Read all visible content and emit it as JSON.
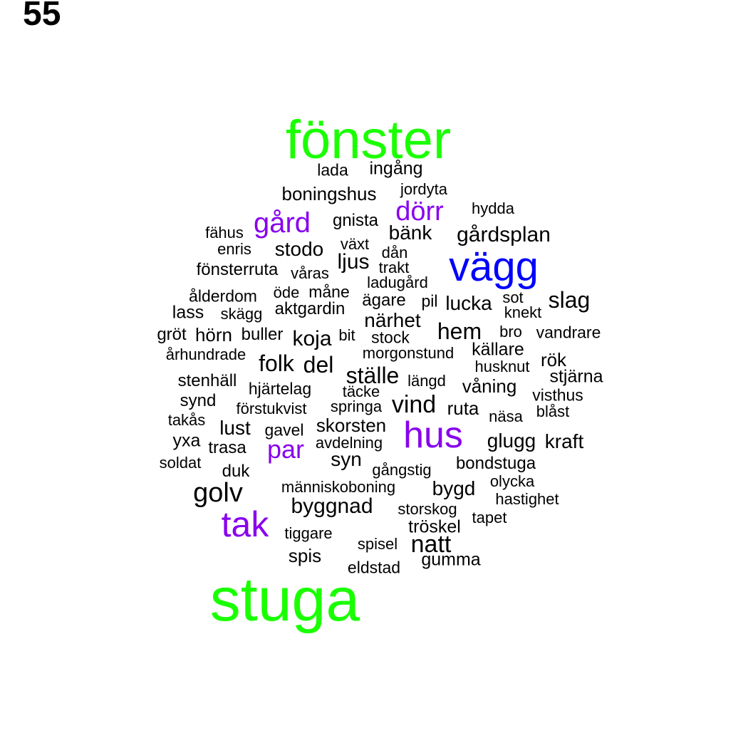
{
  "figure_label": "55",
  "colors": {
    "green": "#1aff00",
    "blue": "#0000ff",
    "purple": "#8800ee",
    "black": "#000000"
  },
  "words": [
    {
      "text": "fönster",
      "tier": "green"
    },
    {
      "text": "stuga",
      "tier": "green"
    },
    {
      "text": "vägg",
      "tier": "blue"
    },
    {
      "text": "hus",
      "tier": "purple"
    },
    {
      "text": "tak",
      "tier": "purple"
    },
    {
      "text": "gård",
      "tier": "purple"
    },
    {
      "text": "dörr",
      "tier": "purple"
    },
    {
      "text": "par",
      "tier": "purple"
    },
    {
      "text": "lada",
      "tier": "black"
    },
    {
      "text": "ingång",
      "tier": "black"
    },
    {
      "text": "boningshus",
      "tier": "black"
    },
    {
      "text": "jordyta",
      "tier": "black"
    },
    {
      "text": "hydda",
      "tier": "black"
    },
    {
      "text": "gnista",
      "tier": "black"
    },
    {
      "text": "fähus",
      "tier": "black"
    },
    {
      "text": "bänk",
      "tier": "black"
    },
    {
      "text": "gårdsplan",
      "tier": "black"
    },
    {
      "text": "enris",
      "tier": "black"
    },
    {
      "text": "växt",
      "tier": "black"
    },
    {
      "text": "stodo",
      "tier": "black"
    },
    {
      "text": "dån",
      "tier": "black"
    },
    {
      "text": "ljus",
      "tier": "black"
    },
    {
      "text": "fönsterruta",
      "tier": "black"
    },
    {
      "text": "trakt",
      "tier": "black"
    },
    {
      "text": "våras",
      "tier": "black"
    },
    {
      "text": "ladugård",
      "tier": "black"
    },
    {
      "text": "ålderdom",
      "tier": "black"
    },
    {
      "text": "öde",
      "tier": "black"
    },
    {
      "text": "måne",
      "tier": "black"
    },
    {
      "text": "ägare",
      "tier": "black"
    },
    {
      "text": "pil",
      "tier": "black"
    },
    {
      "text": "lucka",
      "tier": "black"
    },
    {
      "text": "sot",
      "tier": "black"
    },
    {
      "text": "slag",
      "tier": "black"
    },
    {
      "text": "lass",
      "tier": "black"
    },
    {
      "text": "skägg",
      "tier": "black"
    },
    {
      "text": "aktgardin",
      "tier": "black"
    },
    {
      "text": "knekt",
      "tier": "black"
    },
    {
      "text": "närhet",
      "tier": "black"
    },
    {
      "text": "gröt",
      "tier": "black"
    },
    {
      "text": "hörn",
      "tier": "black"
    },
    {
      "text": "buller",
      "tier": "black"
    },
    {
      "text": "koja",
      "tier": "black"
    },
    {
      "text": "bit",
      "tier": "black"
    },
    {
      "text": "stock",
      "tier": "black"
    },
    {
      "text": "hem",
      "tier": "black"
    },
    {
      "text": "bro",
      "tier": "black"
    },
    {
      "text": "vandrare",
      "tier": "black"
    },
    {
      "text": "århundrade",
      "tier": "black"
    },
    {
      "text": "morgonstund",
      "tier": "black"
    },
    {
      "text": "källare",
      "tier": "black"
    },
    {
      "text": "folk",
      "tier": "black"
    },
    {
      "text": "del",
      "tier": "black"
    },
    {
      "text": "rök",
      "tier": "black"
    },
    {
      "text": "husknut",
      "tier": "black"
    },
    {
      "text": "ställe",
      "tier": "black"
    },
    {
      "text": "stenhäll",
      "tier": "black"
    },
    {
      "text": "längd",
      "tier": "black"
    },
    {
      "text": "stjärna",
      "tier": "black"
    },
    {
      "text": "hjärtelag",
      "tier": "black"
    },
    {
      "text": "täcke",
      "tier": "black"
    },
    {
      "text": "våning",
      "tier": "black"
    },
    {
      "text": "synd",
      "tier": "black"
    },
    {
      "text": "visthus",
      "tier": "black"
    },
    {
      "text": "förstukvist",
      "tier": "black"
    },
    {
      "text": "springa",
      "tier": "black"
    },
    {
      "text": "vind",
      "tier": "black"
    },
    {
      "text": "ruta",
      "tier": "black"
    },
    {
      "text": "blåst",
      "tier": "black"
    },
    {
      "text": "takås",
      "tier": "black"
    },
    {
      "text": "näsa",
      "tier": "black"
    },
    {
      "text": "lust",
      "tier": "black"
    },
    {
      "text": "gavel",
      "tier": "black"
    },
    {
      "text": "skorsten",
      "tier": "black"
    },
    {
      "text": "yxa",
      "tier": "black"
    },
    {
      "text": "glugg",
      "tier": "black"
    },
    {
      "text": "kraft",
      "tier": "black"
    },
    {
      "text": "trasa",
      "tier": "black"
    },
    {
      "text": "avdelning",
      "tier": "black"
    },
    {
      "text": "syn",
      "tier": "black"
    },
    {
      "text": "soldat",
      "tier": "black"
    },
    {
      "text": "bondstuga",
      "tier": "black"
    },
    {
      "text": "duk",
      "tier": "black"
    },
    {
      "text": "gångstig",
      "tier": "black"
    },
    {
      "text": "olycka",
      "tier": "black"
    },
    {
      "text": "golv",
      "tier": "black"
    },
    {
      "text": "människoboning",
      "tier": "black"
    },
    {
      "text": "bygd",
      "tier": "black"
    },
    {
      "text": "hastighet",
      "tier": "black"
    },
    {
      "text": "byggnad",
      "tier": "black"
    },
    {
      "text": "storskog",
      "tier": "black"
    },
    {
      "text": "tapet",
      "tier": "black"
    },
    {
      "text": "tröskel",
      "tier": "black"
    },
    {
      "text": "tiggare",
      "tier": "black"
    },
    {
      "text": "spisel",
      "tier": "black"
    },
    {
      "text": "natt",
      "tier": "black"
    },
    {
      "text": "spis",
      "tier": "black"
    },
    {
      "text": "gumma",
      "tier": "black"
    },
    {
      "text": "eldstad",
      "tier": "black"
    }
  ]
}
